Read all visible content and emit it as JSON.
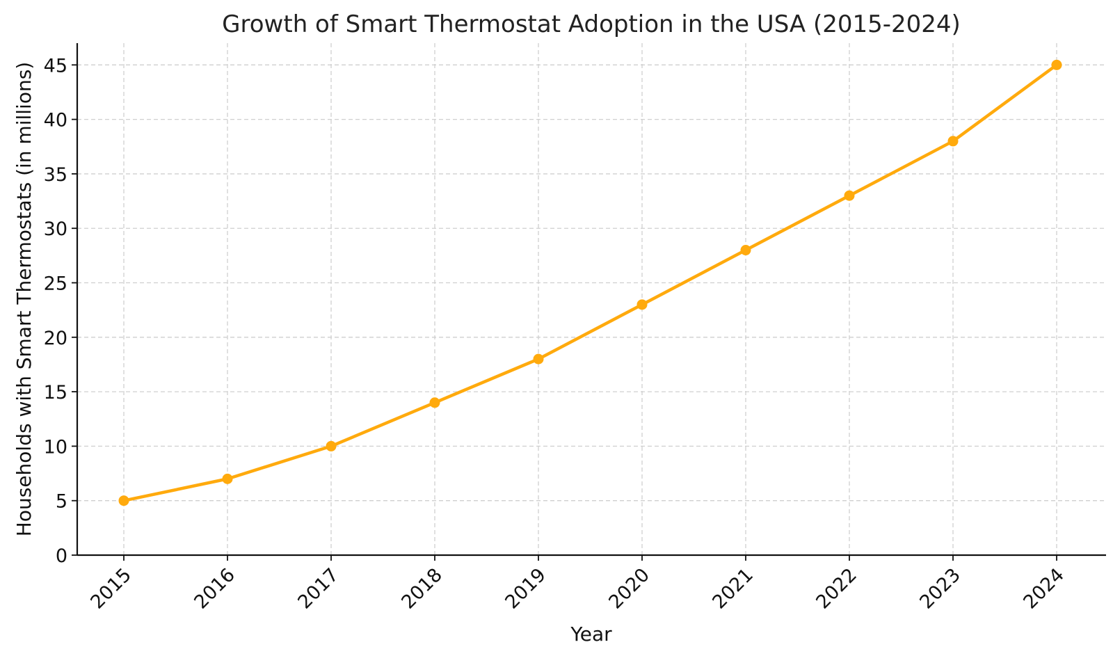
{
  "chart_data": {
    "type": "line",
    "title": "Growth of Smart Thermostat Adoption in the USA (2015-2024)",
    "xlabel": "Year",
    "ylabel": "Households with Smart Thermostats (in millions)",
    "categories": [
      "2015",
      "2016",
      "2017",
      "2018",
      "2019",
      "2020",
      "2021",
      "2022",
      "2023",
      "2024"
    ],
    "series": [
      {
        "values": [
          5,
          7,
          10,
          14,
          18,
          23,
          28,
          33,
          38,
          45
        ]
      }
    ],
    "ylim": [
      0,
      47
    ],
    "yticks": [
      0,
      5,
      10,
      15,
      20,
      25,
      30,
      35,
      40,
      45
    ],
    "grid": true,
    "legend": "none",
    "colors": {
      "line": "#FFAA0D",
      "grid": "#cfcfcf",
      "axis": "#111111"
    }
  }
}
